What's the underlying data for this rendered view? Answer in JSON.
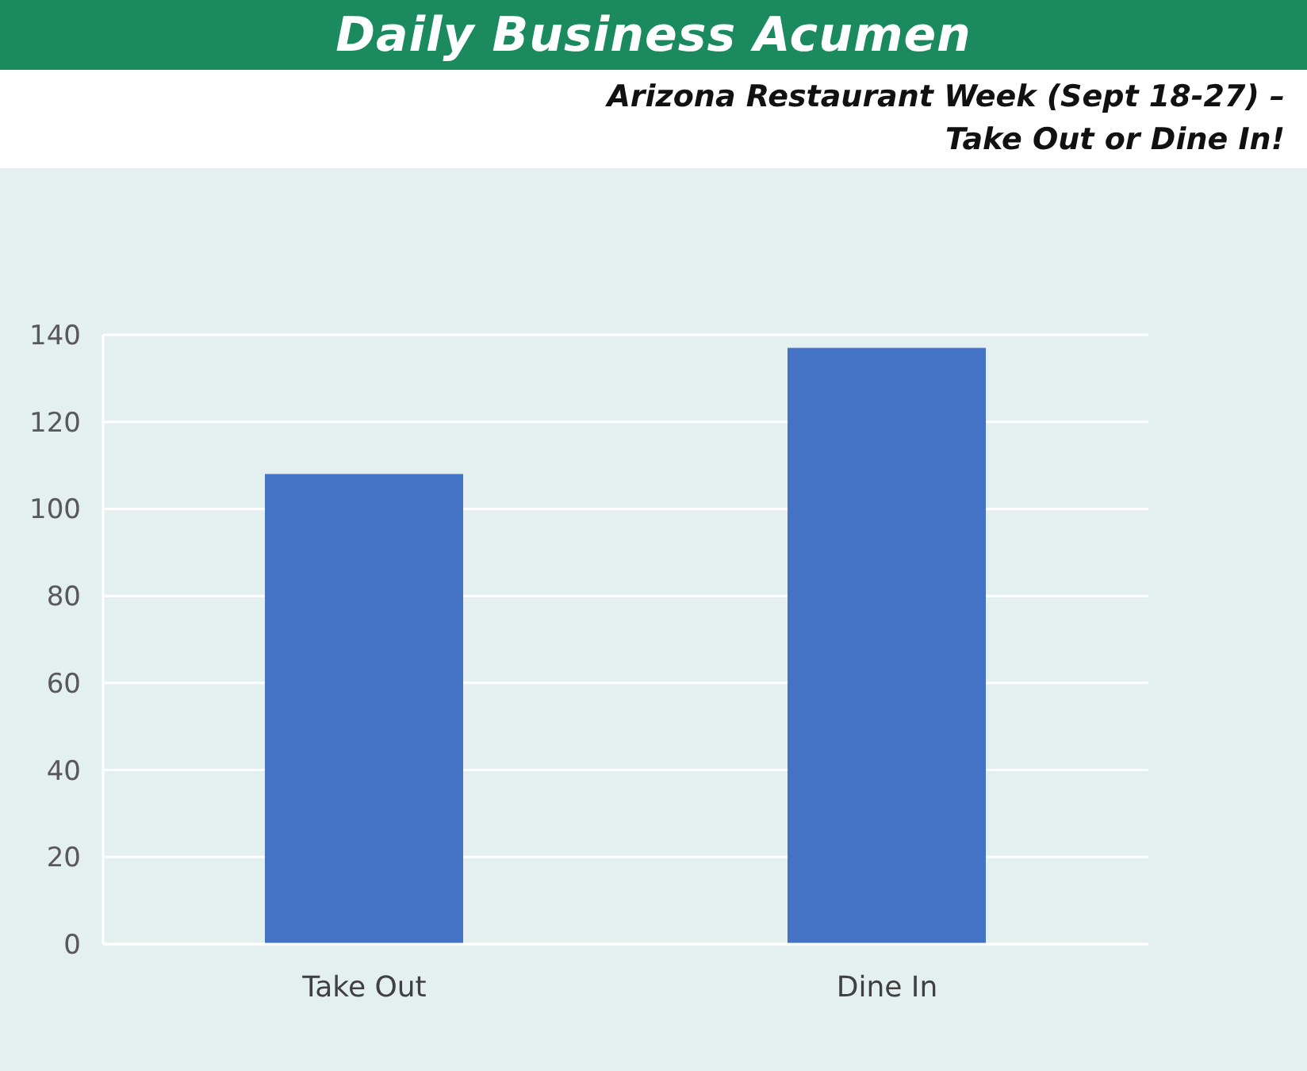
{
  "chart_data": {
    "type": "bar",
    "title": "Daily Business Acumen",
    "subtitle": "Arizona Restaurant Week (Sept 18-27) –\nTake Out or Dine In!",
    "categories": [
      "Take Out",
      "Dine In"
    ],
    "values": [
      108,
      137
    ],
    "color": "#4472c4",
    "ylim": [
      0,
      140
    ],
    "yticks": [
      0,
      20,
      40,
      60,
      80,
      100,
      120,
      140
    ],
    "grid": "y"
  }
}
